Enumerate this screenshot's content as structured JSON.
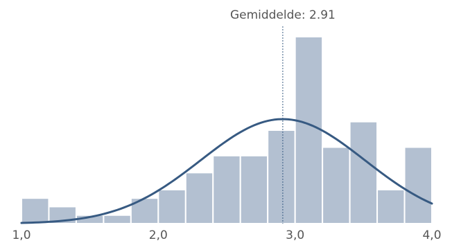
{
  "chart_data": {
    "type": "bar",
    "subtype": "histogram-with-density-curve",
    "x_range": [
      1.0,
      4.0
    ],
    "bin_width": 0.2,
    "bins": [
      {
        "start": 1.0,
        "end": 1.2,
        "count": 3
      },
      {
        "start": 1.2,
        "end": 1.4,
        "count": 2
      },
      {
        "start": 1.4,
        "end": 1.6,
        "count": 1
      },
      {
        "start": 1.6,
        "end": 1.8,
        "count": 1
      },
      {
        "start": 1.8,
        "end": 2.0,
        "count": 3
      },
      {
        "start": 2.0,
        "end": 2.2,
        "count": 4
      },
      {
        "start": 2.2,
        "end": 2.4,
        "count": 6
      },
      {
        "start": 2.4,
        "end": 2.6,
        "count": 8
      },
      {
        "start": 2.6,
        "end": 2.8,
        "count": 8
      },
      {
        "start": 2.8,
        "end": 3.0,
        "count": 11
      },
      {
        "start": 3.0,
        "end": 3.2,
        "count": 22
      },
      {
        "start": 3.2,
        "end": 3.4,
        "count": 9
      },
      {
        "start": 3.4,
        "end": 3.6,
        "count": 12
      },
      {
        "start": 3.6,
        "end": 3.8,
        "count": 4
      },
      {
        "start": 3.8,
        "end": 4.0,
        "count": 9
      }
    ],
    "y_max": 22,
    "mean": 2.91,
    "mean_label": "Gemiddelde: 2.91",
    "curve": {
      "type": "normal",
      "mean": 2.91,
      "sd": 0.6,
      "peak": 12.3
    },
    "x_ticks": [
      {
        "value": 1.0,
        "label": "1,0"
      },
      {
        "value": 2.0,
        "label": "2,0"
      },
      {
        "value": 3.0,
        "label": "3,0"
      },
      {
        "value": 4.0,
        "label": "4,0"
      }
    ],
    "grid": false,
    "legend": "none",
    "colors": {
      "bar": "#b3c0d1",
      "curve": "#375a82",
      "mean_line": "#375a82",
      "text": "#555555"
    }
  }
}
